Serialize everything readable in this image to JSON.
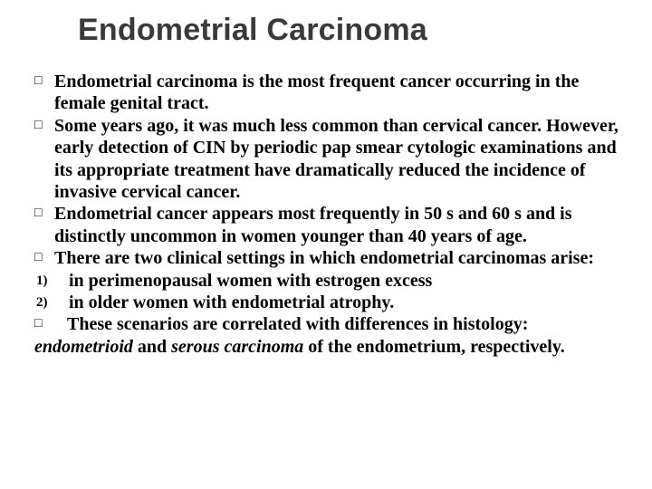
{
  "title": "Endometrial Carcinoma",
  "bullets": {
    "b1": "Endometrial carcinoma is the most frequent cancer occurring in the female genital tract.",
    "b2": " Some years ago, it was much less common than cervical cancer. However, early detection of CIN by periodic pap smear cytologic examinations and its appropriate treatment have dramatically reduced the incidence of invasive cervical cancer.",
    "b3": "Endometrial cancer appears most frequently in 50 s and 60 s and is distinctly uncommon in women younger than 40 years of age.",
    "b4": " There are two clinical settings in which endometrial carcinomas arise:",
    "n1_marker": "1)",
    "n1": "in perimenopausal women with estrogen excess",
    "n2_marker": "2)",
    "n2": "in older women with endometrial atrophy.",
    "b5": "These scenarios are correlated with differences in histology:",
    "last_em1": "endometrioid",
    "last_mid": " and ",
    "last_em2": "serous carcinoma ",
    "last_end": "of the endometrium, respectively."
  },
  "glyphs": {
    "square": "□"
  },
  "colors": {
    "title": "#3a3a3a",
    "text": "#000000",
    "bg": "#ffffff"
  },
  "typography": {
    "title_fontsize": 34,
    "body_fontsize": 20,
    "title_family": "Arial",
    "body_family": "Times New Roman",
    "body_weight": 700
  }
}
